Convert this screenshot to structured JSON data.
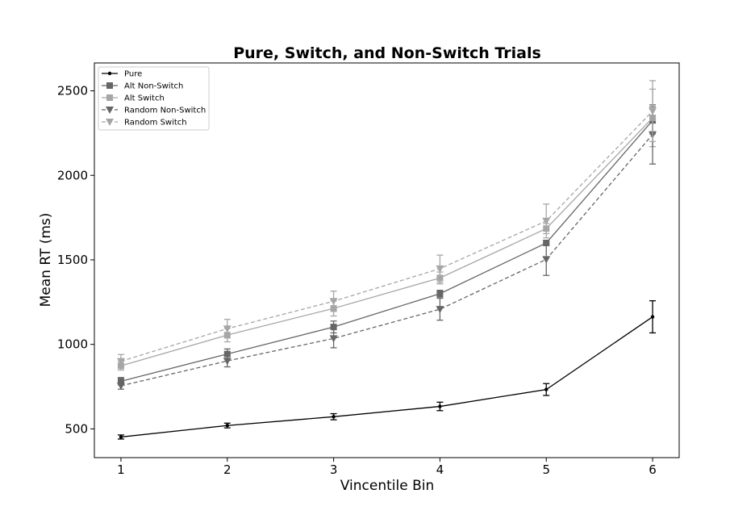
{
  "chart_data": {
    "type": "line",
    "title": "Pure, Switch, and Non-Switch Trials",
    "xlabel": "Vincentile Bin",
    "ylabel": "Mean RT (ms)",
    "x": [
      1,
      2,
      3,
      4,
      5,
      6
    ],
    "xlim": [
      0.75,
      6.25
    ],
    "ylim": [
      330,
      2665
    ],
    "yticks": [
      500,
      1000,
      1500,
      2000,
      2500
    ],
    "grid": false,
    "legend_position": "top-left",
    "series": [
      {
        "name": "Pure",
        "values": [
          452,
          520,
          572,
          633,
          733,
          1163
        ],
        "errors": [
          12,
          14,
          18,
          25,
          35,
          95
        ],
        "color": "#000000",
        "marker": "dot",
        "linestyle": "solid"
      },
      {
        "name": "Alt Non-Switch",
        "values": [
          782,
          943,
          1103,
          1300,
          1600,
          2325
        ],
        "errors": [
          22,
          30,
          35,
          20,
          15,
          80
        ],
        "color": "#666666",
        "marker": "square",
        "linestyle": "solid"
      },
      {
        "name": "Alt Switch",
        "values": [
          873,
          1055,
          1213,
          1393,
          1685,
          2340
        ],
        "errors": [
          25,
          40,
          45,
          35,
          30,
          170
        ],
        "color": "#a6a6a6",
        "marker": "square",
        "linestyle": "solid"
      },
      {
        "name": "Random Non-Switch",
        "values": [
          755,
          902,
          1035,
          1208,
          1503,
          2242
        ],
        "errors": [
          20,
          35,
          55,
          65,
          95,
          175
        ],
        "color": "#666666",
        "marker": "triangle-down",
        "linestyle": "dashed"
      },
      {
        "name": "Random Switch",
        "values": [
          900,
          1093,
          1255,
          1448,
          1730,
          2380
        ],
        "errors": [
          40,
          55,
          60,
          80,
          100,
          180
        ],
        "color": "#a6a6a6",
        "marker": "triangle-down",
        "linestyle": "dashed"
      }
    ]
  }
}
